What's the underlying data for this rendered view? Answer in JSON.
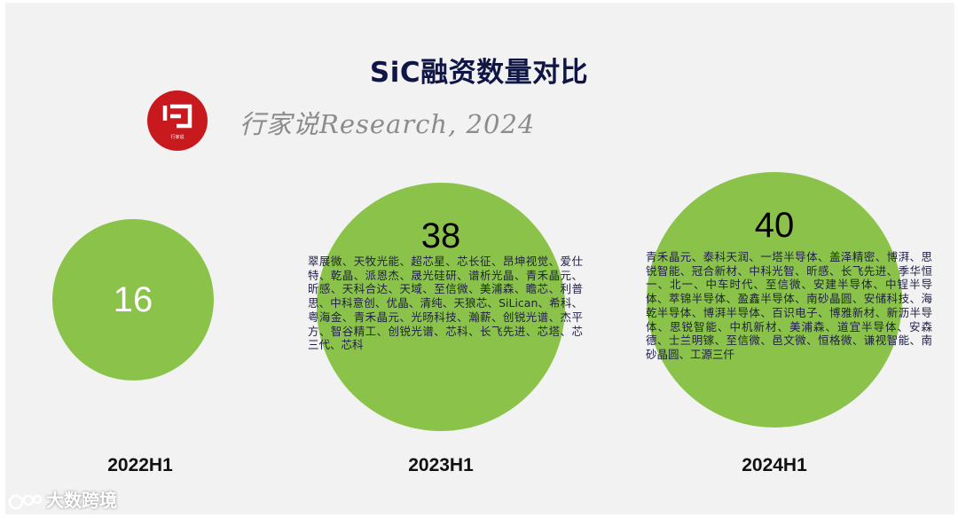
{
  "title": "SiC融资数量对比",
  "subtitle": "行家说Research, 2024",
  "logo_brand": "行家说",
  "watermark": "大数跨境",
  "chart_data": {
    "type": "bubble",
    "title": "SiC融资数量对比",
    "categories": [
      "2022H1",
      "2023H1",
      "2024H1"
    ],
    "values": [
      16,
      38,
      40
    ],
    "companies": [
      "",
      "翠展微、天牧光能、超芯星、芯长征、昂坤视觉、爱仕特、乾晶、派恩杰、晟光硅研、谱析光晶、青禾晶元、昕感、天科合达、天域、至信微、美浦森、瞻芯、利普思、中科意创、优晶、清纯、天狼芯、SiLican、希科、粤海金、青禾晶元、光旸科技、瀚薪、创锐光谱、杰平方、智谷精工、创锐光谱、芯科、长飞先进、芯塔、芯三代、芯科",
      "青禾晶元、泰科天润、一塔半导体、盖泽精密、博湃、思锐智能、冠合新材、中科光智、昕感、长飞先进、季华恒一、北一、中车时代、至信微、安建半导体、中锃半导体、萃锦半导体、盈鑫半导体、南砂晶圆、安储科技、海乾半导体、博湃半导体、百识电子、博雅新材、新沥半导体、思锐智能、中机新材、美浦森、道宜半导体、安森德、士兰明镓、至信微、邑文微、恒格微、谦视智能、南砂晶圆、工源三仟"
    ],
    "colors": {
      "bubble": "#8bc34a",
      "title": "#0f1646",
      "text": "#1e1e46"
    }
  }
}
